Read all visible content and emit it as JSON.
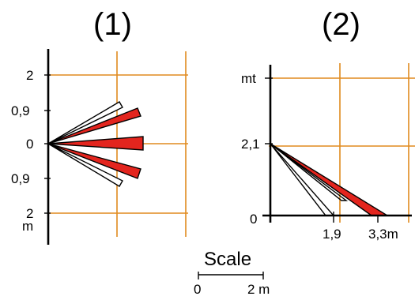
{
  "panel1": {
    "label": "(1)",
    "ticks": {
      "top2": "2",
      "upper09": "0,9",
      "zero": "0",
      "lower09": "0,9",
      "bottom2": "2",
      "unit": "m"
    }
  },
  "panel2": {
    "label": "(2)",
    "ticks": {
      "unit": "mt",
      "height": "2,1",
      "zero": "0",
      "x1": "1,9",
      "x2": "3,3m"
    }
  },
  "scale": {
    "title": "Scale",
    "start": "0",
    "end": "2 m"
  },
  "colors": {
    "grid": "#e08a1e",
    "zone": "#e3251e",
    "ink": "#000000"
  }
}
